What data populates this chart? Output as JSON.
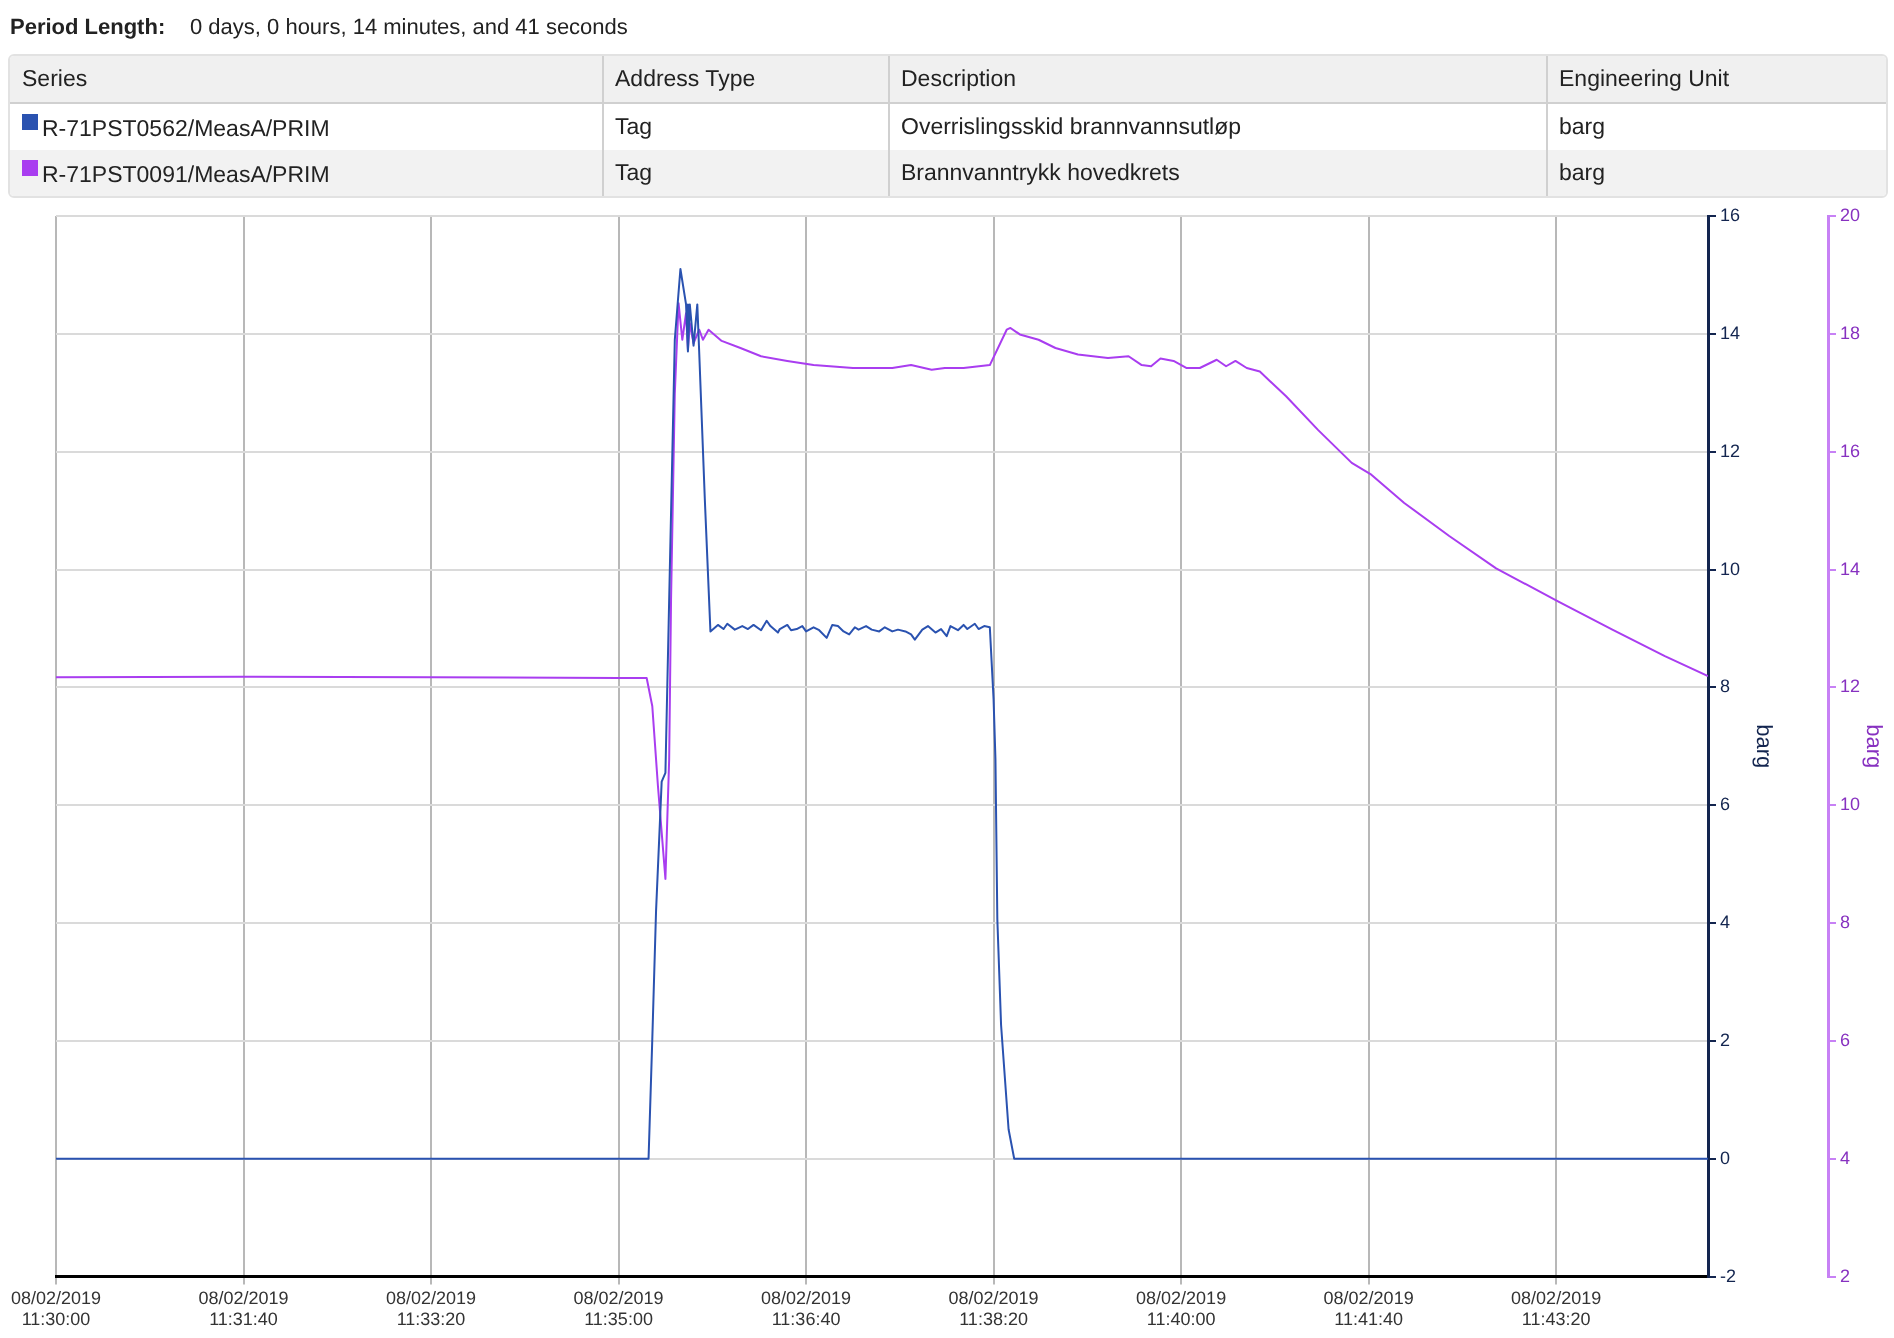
{
  "chart_data": {
    "type": "line",
    "annotations": [
      "Period Length:",
      "0 days, 0 hours, 14 minutes, and 41 seconds",
      "Address Type",
      "Description",
      "Engineering Unit",
      "Tag",
      "Overrislingsskid brannvannsutløp",
      "barg",
      "Tag",
      "Brannvanntrykk hovedkrets",
      "barg"
    ],
    "legend_title": "Series",
    "legend": "top",
    "grid": true,
    "marker": "none",
    "line_style": "solid",
    "ylabel": "barg",
    "y2label": "barg",
    "xlim": [
      "2019-02-08T11:30:00",
      "2019-02-08T11:44:41"
    ],
    "xticks": [
      {
        "value": "2019-02-08T11:30:00",
        "label": "08/02/2019 11:30:00"
      },
      {
        "value": "2019-02-08T11:31:40",
        "label": "08/02/2019 11:31:40"
      },
      {
        "value": "2019-02-08T11:33:20",
        "label": "08/02/2019 11:33:20"
      },
      {
        "value": "2019-02-08T11:35:00",
        "label": "08/02/2019 11:35:00"
      },
      {
        "value": "2019-02-08T11:36:40",
        "label": "08/02/2019 11:36:40"
      },
      {
        "value": "2019-02-08T11:38:20",
        "label": "08/02/2019 11:38:20"
      },
      {
        "value": "2019-02-08T11:40:00",
        "label": "08/02/2019 11:40:00"
      },
      {
        "value": "2019-02-08T11:41:40",
        "label": "08/02/2019 11:41:40"
      },
      {
        "value": "2019-02-08T11:43:20",
        "label": "08/02/2019 11:43:20"
      }
    ],
    "ylim": [
      -2,
      16
    ],
    "yticks": [
      -2,
      0,
      2,
      4,
      6,
      8,
      10,
      12,
      14,
      16
    ],
    "y2lim": [
      2,
      20
    ],
    "y2ticks": [
      2,
      4,
      6,
      8,
      10,
      12,
      14,
      16,
      18,
      20
    ],
    "series": [
      {
        "name": "R-71PST0562/MeasA/PRIM",
        "color": "#2a52b0",
        "axis": "y",
        "x": [
          "2019-02-08T11:30:00",
          "2019-02-08T11:31:40",
          "2019-02-08T11:33:20",
          "2019-02-08T11:35:16",
          "2019-02-08T11:35:18",
          "2019-02-08T11:35:20",
          "2019-02-08T11:35:23",
          "2019-02-08T11:35:25",
          "2019-02-08T11:35:30",
          "2019-02-08T11:35:33",
          "2019-02-08T11:35:36",
          "2019-02-08T11:35:37",
          "2019-02-08T11:35:38",
          "2019-02-08T11:35:40",
          "2019-02-08T11:35:42",
          "2019-02-08T11:35:43",
          "2019-02-08T11:35:46",
          "2019-02-08T11:35:49",
          "2019-02-08T11:35:53",
          "2019-02-08T11:35:56",
          "2019-02-08T11:35:58",
          "2019-02-08T11:36:02",
          "2019-02-08T11:36:06",
          "2019-02-08T11:36:09",
          "2019-02-08T11:36:12",
          "2019-02-08T11:36:16",
          "2019-02-08T11:36:19",
          "2019-02-08T11:36:21",
          "2019-02-08T11:36:25",
          "2019-02-08T11:36:26",
          "2019-02-08T11:36:30",
          "2019-02-08T11:36:32",
          "2019-02-08T11:36:35",
          "2019-02-08T11:36:38",
          "2019-02-08T11:36:40",
          "2019-02-08T11:36:44",
          "2019-02-08T11:36:47",
          "2019-02-08T11:36:51",
          "2019-02-08T11:36:54",
          "2019-02-08T11:36:57",
          "2019-02-08T11:37:00",
          "2019-02-08T11:37:03",
          "2019-02-08T11:37:06",
          "2019-02-08T11:37:08",
          "2019-02-08T11:37:12",
          "2019-02-08T11:37:15",
          "2019-02-08T11:37:19",
          "2019-02-08T11:37:22",
          "2019-02-08T11:37:26",
          "2019-02-08T11:37:29",
          "2019-02-08T11:37:33",
          "2019-02-08T11:37:36",
          "2019-02-08T11:37:38",
          "2019-02-08T11:37:42",
          "2019-02-08T11:37:45",
          "2019-02-08T11:37:49",
          "2019-02-08T11:37:52",
          "2019-02-08T11:37:55",
          "2019-02-08T11:37:57",
          "2019-02-08T11:38:01",
          "2019-02-08T11:38:04",
          "2019-02-08T11:38:06",
          "2019-02-08T11:38:10",
          "2019-02-08T11:38:12",
          "2019-02-08T11:38:15",
          "2019-02-08T11:38:18",
          "2019-02-08T11:38:20",
          "2019-02-08T11:38:21",
          "2019-02-08T11:38:22",
          "2019-02-08T11:38:24",
          "2019-02-08T11:38:28",
          "2019-02-08T11:38:31",
          "2019-02-08T11:40:00",
          "2019-02-08T11:41:40",
          "2019-02-08T11:43:20",
          "2019-02-08T11:44:41"
        ],
        "values": [
          0,
          0,
          0,
          0,
          2.03,
          4.2,
          6.4,
          6.55,
          13.9,
          15.1,
          14.5,
          13.7,
          14.5,
          13.8,
          14.5,
          13.7,
          11.2,
          8.95,
          9.06,
          8.99,
          9.08,
          8.98,
          9.04,
          8.99,
          9.06,
          8.97,
          9.13,
          9.04,
          8.93,
          8.99,
          9.06,
          8.97,
          8.99,
          9.04,
          8.95,
          9.02,
          8.97,
          8.84,
          9.06,
          9.04,
          8.95,
          8.9,
          9.02,
          8.98,
          9.04,
          8.98,
          8.95,
          9.02,
          8.95,
          8.98,
          8.95,
          8.9,
          8.81,
          8.98,
          9.04,
          8.93,
          8.99,
          8.87,
          9.04,
          8.97,
          9.06,
          8.99,
          9.08,
          8.99,
          9.04,
          9.02,
          7.8,
          6.78,
          4.07,
          2.27,
          0.5,
          0,
          0,
          0,
          0,
          0
        ]
      },
      {
        "name": "R-71PST0091/MeasA/PRIM",
        "color": "#a93df0",
        "axis": "y2",
        "x": [
          "2019-02-08T11:30:00",
          "2019-02-08T11:31:40",
          "2019-02-08T11:33:20",
          "2019-02-08T11:35:00",
          "2019-02-08T11:35:15",
          "2019-02-08T11:35:18",
          "2019-02-08T11:35:21",
          "2019-02-08T11:35:25",
          "2019-02-08T11:35:27",
          "2019-02-08T11:35:28",
          "2019-02-08T11:35:30",
          "2019-02-08T11:35:32",
          "2019-02-08T11:35:34",
          "2019-02-08T11:35:36",
          "2019-02-08T11:35:37",
          "2019-02-08T11:35:38",
          "2019-02-08T11:35:40",
          "2019-02-08T11:35:43",
          "2019-02-08T11:35:45",
          "2019-02-08T11:35:48",
          "2019-02-08T11:35:55",
          "2019-02-08T11:36:05",
          "2019-02-08T11:36:16",
          "2019-02-08T11:36:30",
          "2019-02-08T11:36:44",
          "2019-02-08T11:37:05",
          "2019-02-08T11:37:26",
          "2019-02-08T11:37:36",
          "2019-02-08T11:37:47",
          "2019-02-08T11:37:54",
          "2019-02-08T11:38:04",
          "2019-02-08T11:38:18",
          "2019-02-08T11:38:27",
          "2019-02-08T11:38:29",
          "2019-02-08T11:38:34",
          "2019-02-08T11:38:44",
          "2019-02-08T11:38:53",
          "2019-02-08T11:39:05",
          "2019-02-08T11:39:21",
          "2019-02-08T11:39:32",
          "2019-02-08T11:39:39",
          "2019-02-08T11:39:44",
          "2019-02-08T11:39:49",
          "2019-02-08T11:39:56",
          "2019-02-08T11:40:03",
          "2019-02-08T11:40:10",
          "2019-02-08T11:40:19",
          "2019-02-08T11:40:24",
          "2019-02-08T11:40:29",
          "2019-02-08T11:40:35",
          "2019-02-08T11:40:42",
          "2019-02-08T11:40:56",
          "2019-02-08T11:41:13",
          "2019-02-08T11:41:31",
          "2019-02-08T11:41:41",
          "2019-02-08T11:41:59",
          "2019-02-08T11:42:23",
          "2019-02-08T11:42:48",
          "2019-02-08T11:43:21",
          "2019-02-08T11:43:50",
          "2019-02-08T11:44:18",
          "2019-02-08T11:44:41"
        ],
        "values": [
          12.17,
          12.18,
          12.17,
          12.16,
          12.16,
          11.68,
          10.33,
          8.75,
          10.78,
          13.49,
          16.99,
          18.52,
          17.9,
          18.35,
          17.73,
          18.18,
          17.84,
          18.07,
          17.9,
          18.07,
          17.88,
          17.76,
          17.62,
          17.54,
          17.47,
          17.42,
          17.42,
          17.47,
          17.39,
          17.42,
          17.42,
          17.47,
          18.07,
          18.1,
          17.99,
          17.9,
          17.76,
          17.65,
          17.59,
          17.62,
          17.47,
          17.45,
          17.58,
          17.54,
          17.42,
          17.42,
          17.56,
          17.45,
          17.54,
          17.42,
          17.36,
          16.94,
          16.37,
          15.81,
          15.62,
          15.13,
          14.57,
          14.02,
          13.46,
          12.98,
          12.53,
          12.19
        ]
      }
    ]
  }
}
